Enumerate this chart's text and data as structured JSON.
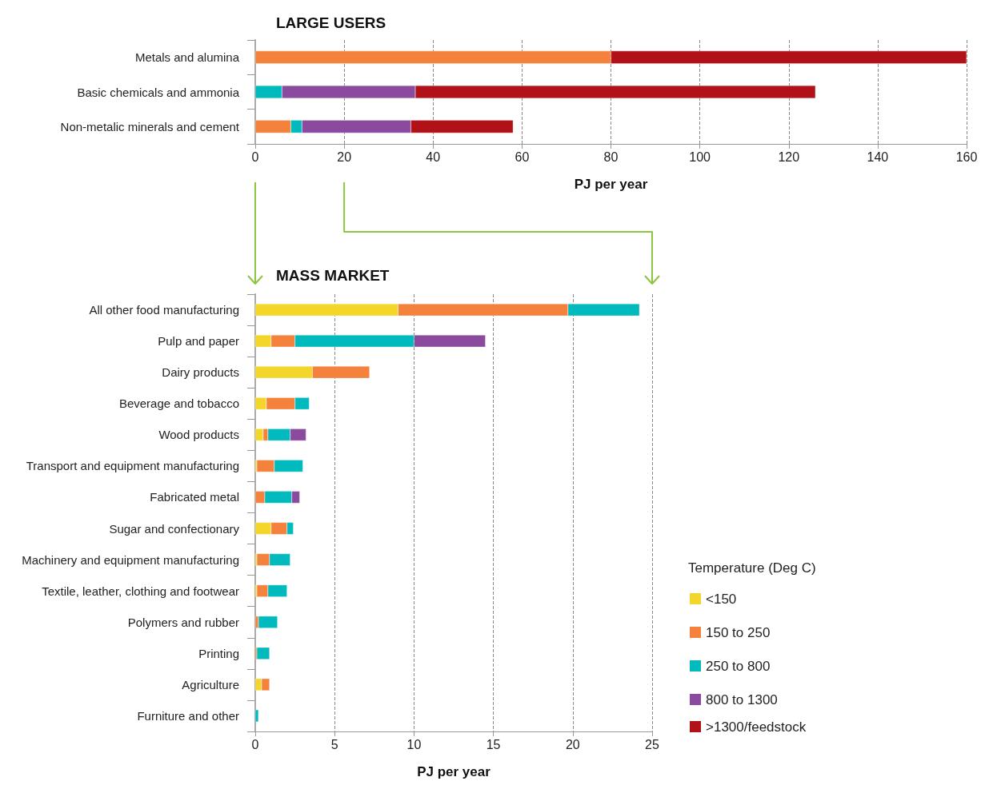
{
  "chart_data": [
    {
      "type": "bar",
      "orientation": "horizontal",
      "stacked": true,
      "title": "LARGE USERS",
      "xlabel": "PJ per year",
      "categories": [
        "Metals and alumina",
        "Basic chemicals and ammonia",
        "Non-metalic minerals and cement"
      ],
      "series": [
        {
          "color": "#f4823c",
          "values": [
            80,
            null,
            8
          ]
        },
        {
          "color": "#00babd",
          "values": [
            null,
            6,
            2.5
          ]
        },
        {
          "color": "#8a4b9e",
          "values": [
            null,
            30,
            24.5
          ]
        },
        {
          "name": ">1300/feedstock",
          "color": "#b01218",
          "values": [
            80,
            90,
            23
          ]
        }
      ],
      "xlim": [
        0,
        160
      ],
      "xticks": [
        0,
        20,
        40,
        60,
        80,
        100,
        120,
        140,
        160
      ],
      "grid": "x",
      "legend": "right"
    },
    {
      "type": "bar",
      "orientation": "horizontal",
      "stacked": true,
      "title": "MASS MARKET",
      "xlabel": "PJ per year",
      "legend_title": "Temperature (Deg C)",
      "categories": [
        "All other food manufacturing",
        "Pulp and paper",
        "Dairy products",
        "Beverage and tobacco",
        "Wood products",
        "Transport and equipment manufacturing",
        "Fabricated metal",
        "Sugar and confectionary",
        "Machinery and equipment manufacturing",
        "Textile, leather, clothing and footwear",
        "Polymers and rubber",
        "Printing",
        "Agriculture",
        "Furniture and other"
      ],
      "series": [
        {
          "name": "<150",
          "color": "#f4d62a",
          "values": [
            9,
            1,
            3.6,
            0.7,
            0.5,
            0.1,
            null,
            1,
            0.1,
            0.1,
            null,
            null,
            0.4,
            null
          ]
        },
        {
          "name": "150 to 250",
          "color": "#f4823c",
          "values": [
            10.7,
            1.5,
            3.6,
            1.8,
            0.3,
            1.1,
            0.6,
            1,
            0.8,
            0.7,
            0.2,
            0.1,
            0.5,
            null
          ]
        },
        {
          "name": "250 to 800",
          "color": "#00babd",
          "values": [
            4.5,
            7.5,
            null,
            0.9,
            1.4,
            1.8,
            1.7,
            0.4,
            1.3,
            1.2,
            1.2,
            0.8,
            null,
            0.2
          ]
        },
        {
          "name": "800 to 1300",
          "color": "#8a4b9e",
          "values": [
            null,
            4.5,
            null,
            null,
            1,
            null,
            0.5,
            null,
            null,
            null,
            null,
            null,
            null,
            null
          ]
        }
      ],
      "xlim": [
        0,
        25
      ],
      "xticks": [
        0,
        5,
        10,
        15,
        20,
        25
      ],
      "grid": "x",
      "legend": "right"
    }
  ]
}
